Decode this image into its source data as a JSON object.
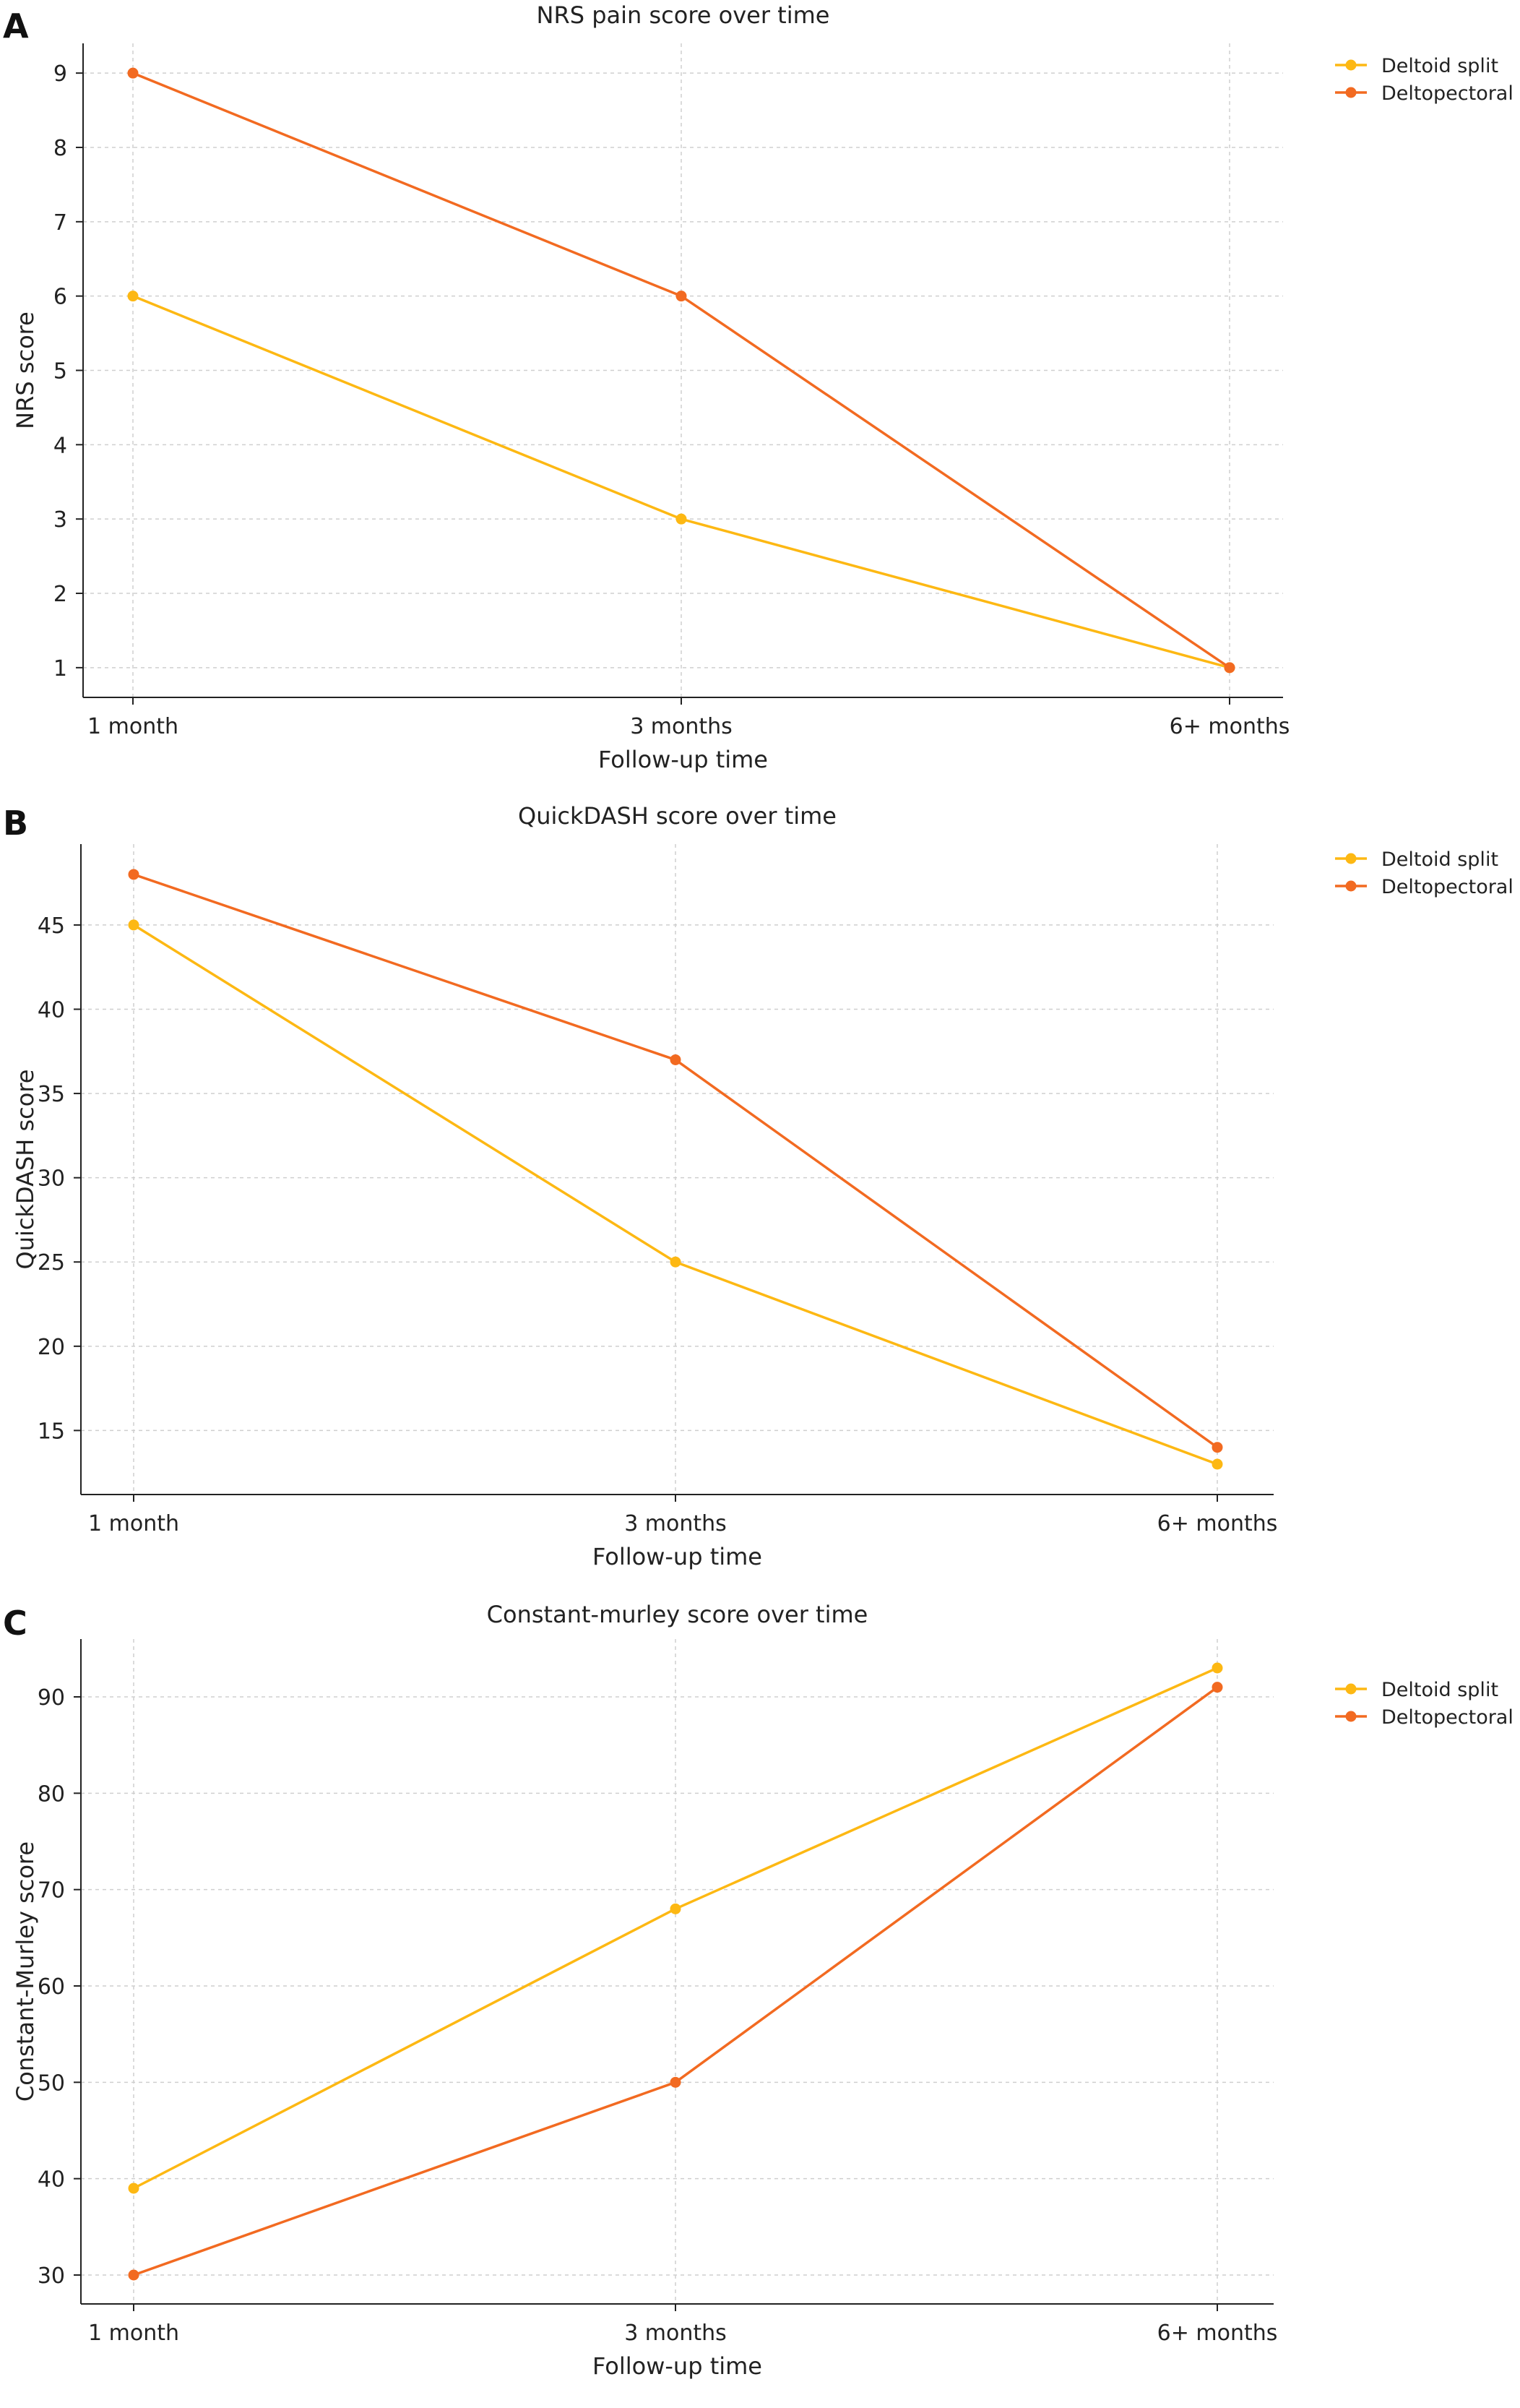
{
  "figure": {
    "colors": {
      "Deltoid split": "#FDB813",
      "Deltopectoral": "#F26A21"
    }
  },
  "chart_data": [
    {
      "type": "line",
      "panel": "A",
      "title": "NRS pain score over time",
      "xlabel": "Follow-up time",
      "ylabel": "NRS score",
      "categories": [
        "1 month",
        "3 months",
        "6+ months"
      ],
      "yticks": [
        1,
        2,
        3,
        4,
        5,
        6,
        7,
        8,
        9
      ],
      "ylim": [
        0.6,
        9.4
      ],
      "grid": true,
      "legend": "top-right",
      "series": [
        {
          "name": "Deltoid split",
          "color": "#FDB813",
          "values": [
            6,
            3,
            1
          ]
        },
        {
          "name": "Deltopectoral",
          "color": "#F26A21",
          "values": [
            9,
            6,
            1
          ]
        }
      ]
    },
    {
      "type": "line",
      "panel": "B",
      "title": "QuickDASH score over time",
      "xlabel": "Follow-up time",
      "ylabel": "QuickDASH score",
      "categories": [
        "1 month",
        "3 months",
        "6+ months"
      ],
      "yticks": [
        15,
        20,
        25,
        30,
        35,
        40,
        45
      ],
      "ylim": [
        11.2,
        49.8
      ],
      "grid": true,
      "legend": "top-right",
      "series": [
        {
          "name": "Deltoid split",
          "color": "#FDB813",
          "values": [
            45,
            25,
            13
          ]
        },
        {
          "name": "Deltopectoral",
          "color": "#F26A21",
          "values": [
            48,
            37,
            14
          ]
        }
      ]
    },
    {
      "type": "line",
      "panel": "C",
      "title": "Constant-murley score over time",
      "xlabel": "Follow-up time",
      "ylabel": "Constant-Murley score",
      "categories": [
        "1 month",
        "3 months",
        "6+ months"
      ],
      "yticks": [
        30,
        40,
        50,
        60,
        70,
        80,
        90
      ],
      "ylim": [
        27,
        96
      ],
      "grid": true,
      "legend": "top-right",
      "series": [
        {
          "name": "Deltoid split",
          "color": "#FDB813",
          "values": [
            39,
            68,
            93
          ]
        },
        {
          "name": "Deltopectoral",
          "color": "#F26A21",
          "values": [
            30,
            50,
            91
          ]
        }
      ]
    }
  ]
}
